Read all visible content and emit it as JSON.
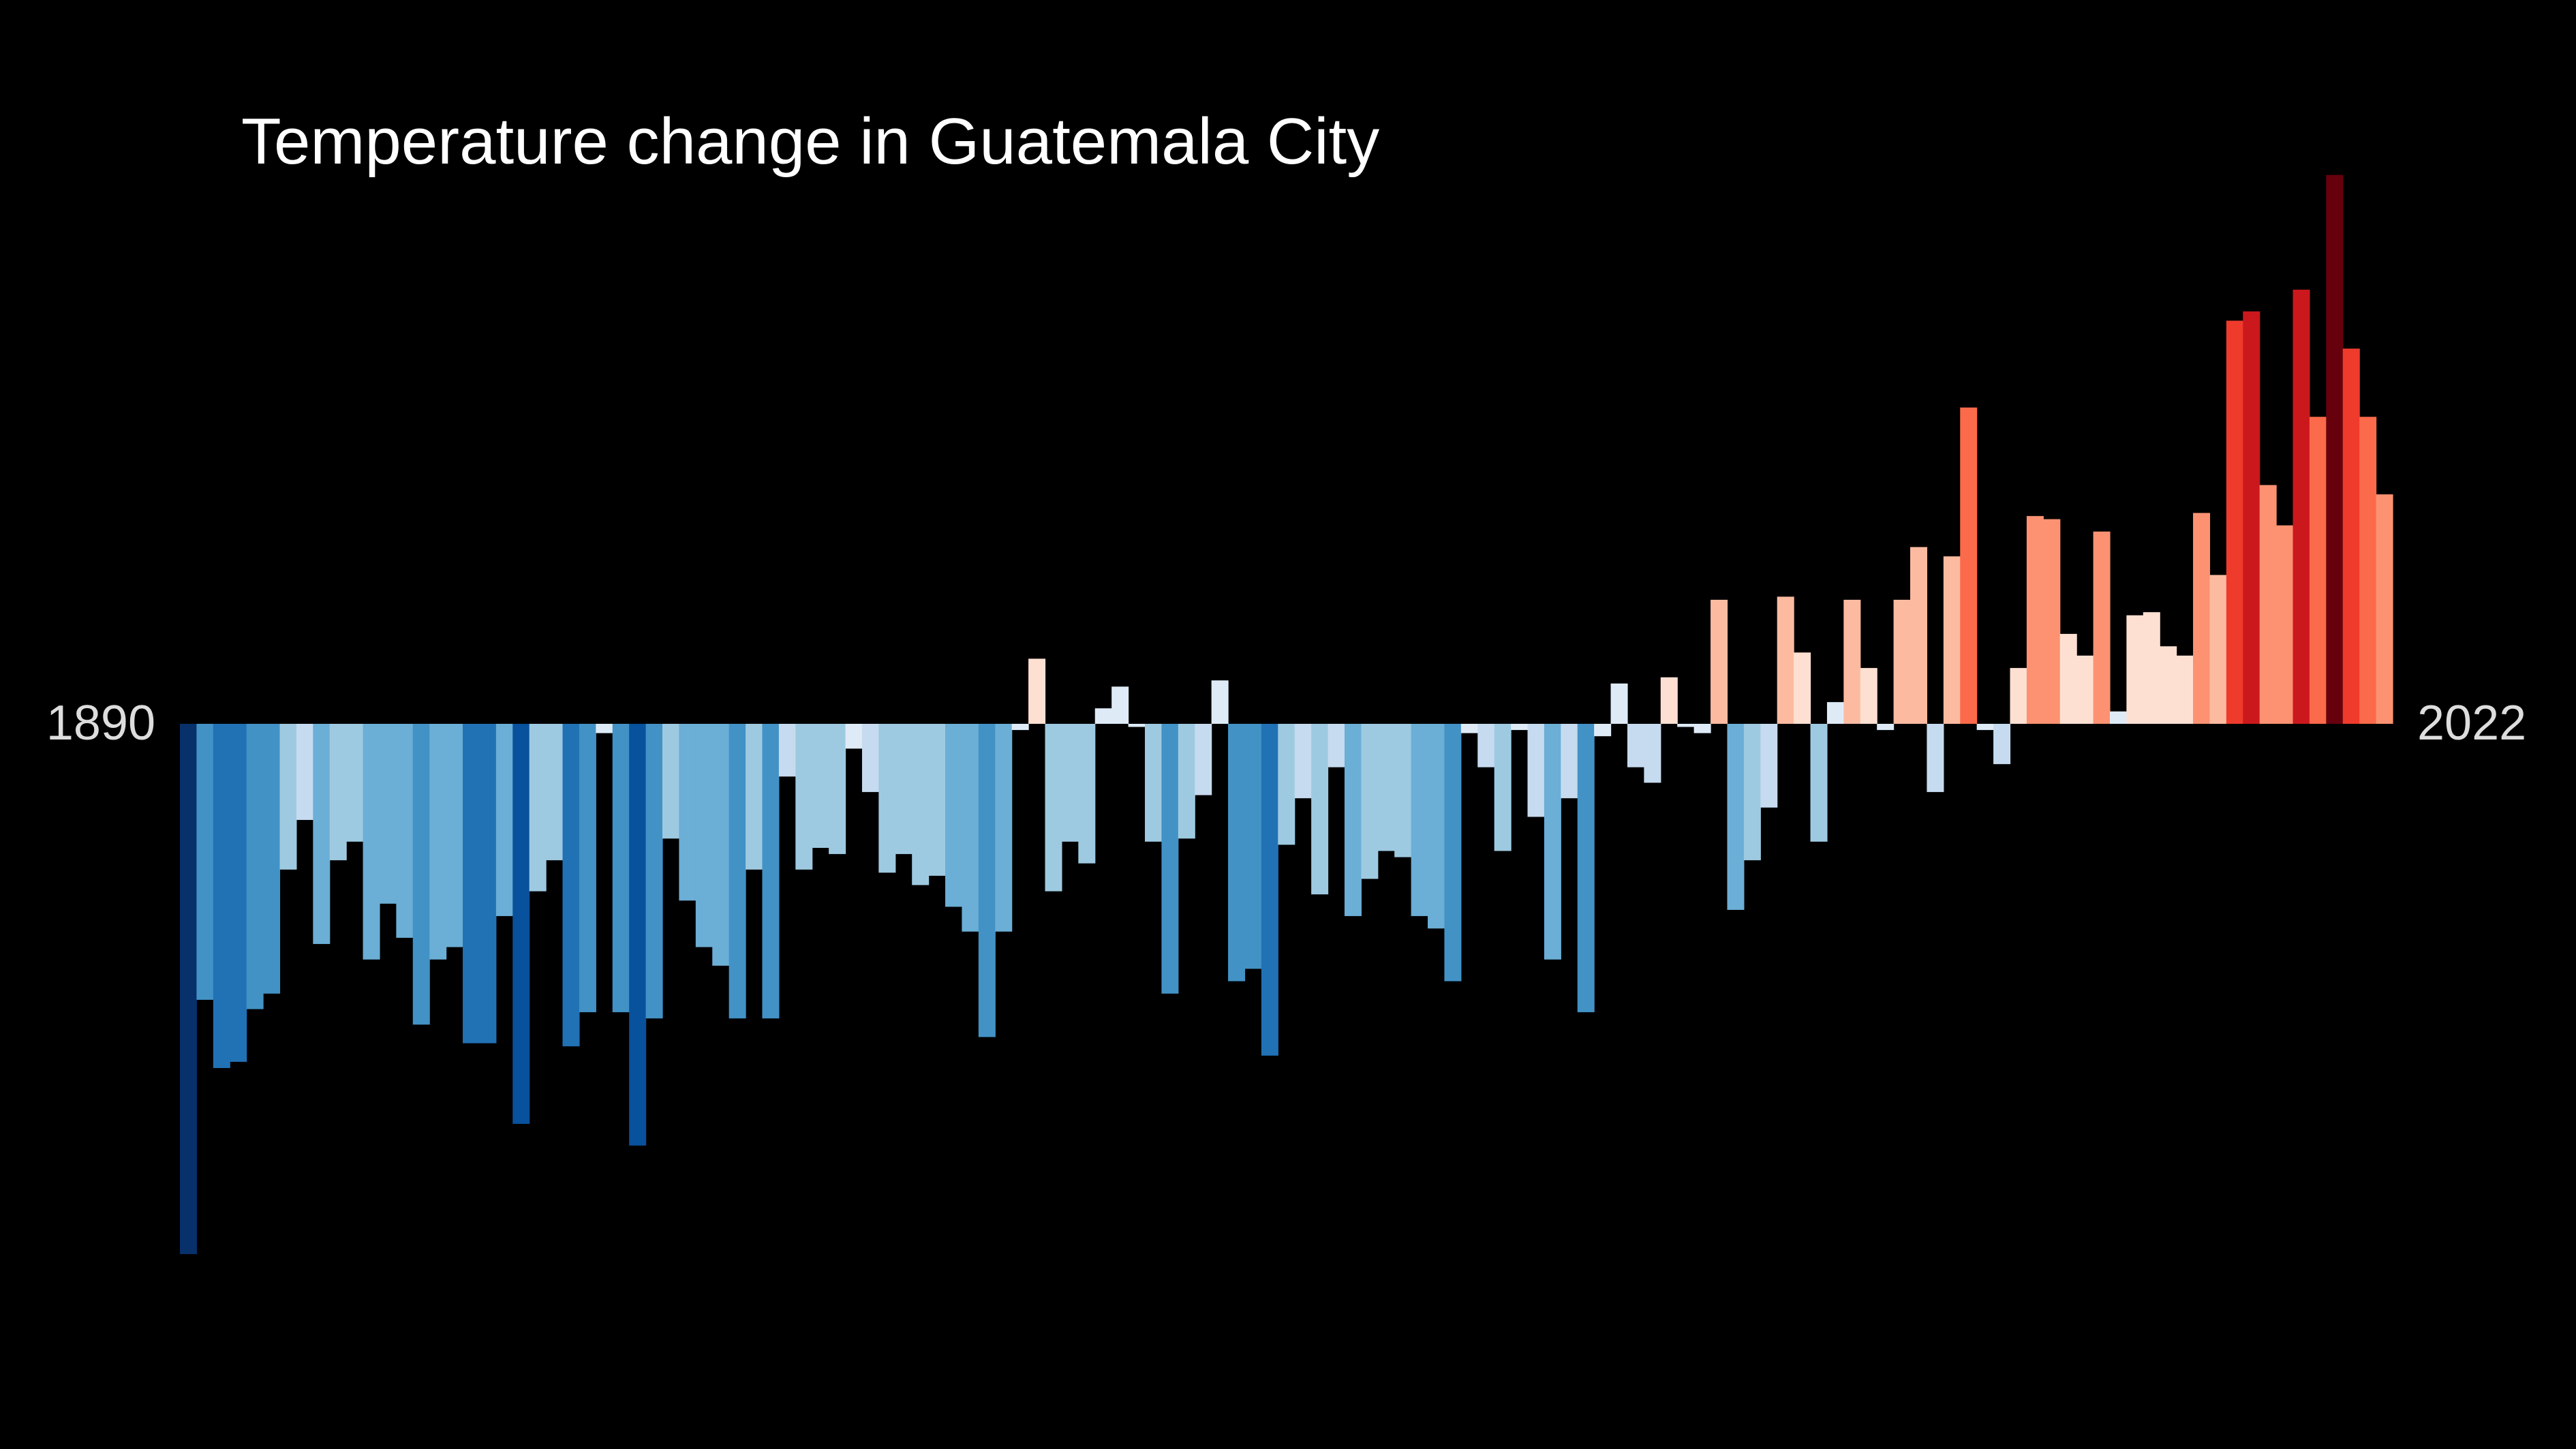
{
  "chart_data": {
    "type": "bar",
    "title": "Temperature change in Guatemala City",
    "xlabel": "",
    "ylabel": "",
    "x_start_label": "1890",
    "x_end_label": "2022",
    "x_range": [
      1890,
      2022
    ],
    "ylim": [
      -1.71,
      1.77
    ],
    "grid": false,
    "legend": "none",
    "colors": {
      "background": "#000000",
      "text": "#ffffff",
      "axis_label": "#dddddd",
      "scale_cold_to_warm": [
        "#08306b",
        "#08519c",
        "#2171b5",
        "#4292c6",
        "#6baed6",
        "#9ecae1",
        "#c6dbef",
        "#deebf7",
        "#fee0d2",
        "#fcbba1",
        "#fc9272",
        "#fb6a4a",
        "#ef3b2c",
        "#cb181d",
        "#67000d"
      ]
    },
    "x": [
      1890,
      1891,
      1892,
      1893,
      1894,
      1895,
      1896,
      1897,
      1898,
      1899,
      1900,
      1901,
      1902,
      1903,
      1904,
      1905,
      1906,
      1907,
      1908,
      1909,
      1910,
      1911,
      1912,
      1913,
      1914,
      1915,
      1916,
      1917,
      1918,
      1919,
      1920,
      1921,
      1922,
      1923,
      1924,
      1925,
      1926,
      1927,
      1928,
      1929,
      1930,
      1931,
      1932,
      1933,
      1934,
      1935,
      1936,
      1937,
      1938,
      1939,
      1940,
      1941,
      1942,
      1943,
      1944,
      1945,
      1946,
      1947,
      1948,
      1949,
      1950,
      1951,
      1952,
      1953,
      1954,
      1955,
      1956,
      1957,
      1958,
      1959,
      1960,
      1961,
      1962,
      1963,
      1964,
      1965,
      1966,
      1967,
      1968,
      1969,
      1970,
      1971,
      1972,
      1973,
      1974,
      1975,
      1976,
      1977,
      1978,
      1979,
      1980,
      1981,
      1982,
      1983,
      1984,
      1985,
      1986,
      1987,
      1988,
      1989,
      1990,
      1991,
      1992,
      1993,
      1994,
      1995,
      1996,
      1997,
      1998,
      1999,
      2000,
      2001,
      2002,
      2003,
      2004,
      2005,
      2006,
      2007,
      2008,
      2009,
      2010,
      2011,
      2012,
      2013,
      2014,
      2015,
      2016,
      2017,
      2018,
      2019,
      2020,
      2021,
      2022
    ],
    "values": [
      -1.71,
      -0.89,
      -1.11,
      -1.09,
      -0.92,
      -0.87,
      -0.47,
      -0.31,
      -0.71,
      -0.44,
      -0.38,
      -0.76,
      -0.58,
      -0.69,
      -0.97,
      -0.76,
      -0.72,
      -1.03,
      -1.03,
      -0.62,
      -1.29,
      -0.54,
      -0.44,
      -1.04,
      -0.93,
      -0.03,
      -0.93,
      -1.36,
      -0.95,
      -0.37,
      -0.57,
      -0.72,
      -0.78,
      -0.95,
      -0.47,
      -0.95,
      -0.17,
      -0.47,
      -0.4,
      -0.42,
      -0.08,
      -0.22,
      -0.48,
      -0.42,
      -0.52,
      -0.49,
      -0.59,
      -0.67,
      -1.01,
      -0.67,
      -0.02,
      0.21,
      -0.54,
      -0.38,
      -0.45,
      0.05,
      0.12,
      -0.01,
      -0.38,
      -0.87,
      -0.37,
      -0.23,
      0.14,
      -0.83,
      -0.79,
      -1.07,
      -0.39,
      -0.24,
      -0.55,
      -0.14,
      -0.62,
      -0.5,
      -0.41,
      -0.43,
      -0.62,
      -0.66,
      -0.83,
      -0.03,
      -0.14,
      -0.41,
      -0.02,
      -0.3,
      -0.76,
      -0.24,
      -0.93,
      -0.04,
      0.13,
      -0.14,
      -0.19,
      0.15,
      -0.01,
      -0.03,
      0.4,
      -0.6,
      -0.44,
      -0.27,
      0.41,
      0.23,
      -0.38,
      0.07,
      0.4,
      0.18,
      -0.02,
      0.4,
      0.57,
      -0.22,
      0.54,
      1.02,
      -0.02,
      -0.13,
      0.18,
      0.67,
      0.66,
      0.29,
      0.22,
      0.62,
      0.04,
      0.35,
      0.36,
      0.25,
      0.22,
      0.68,
      0.48,
      1.3,
      1.33,
      0.77,
      0.64,
      1.4,
      0.99,
      1.77,
      1.21,
      0.99,
      0.74
    ]
  },
  "labels": {
    "start": "1890",
    "end": "2022"
  }
}
